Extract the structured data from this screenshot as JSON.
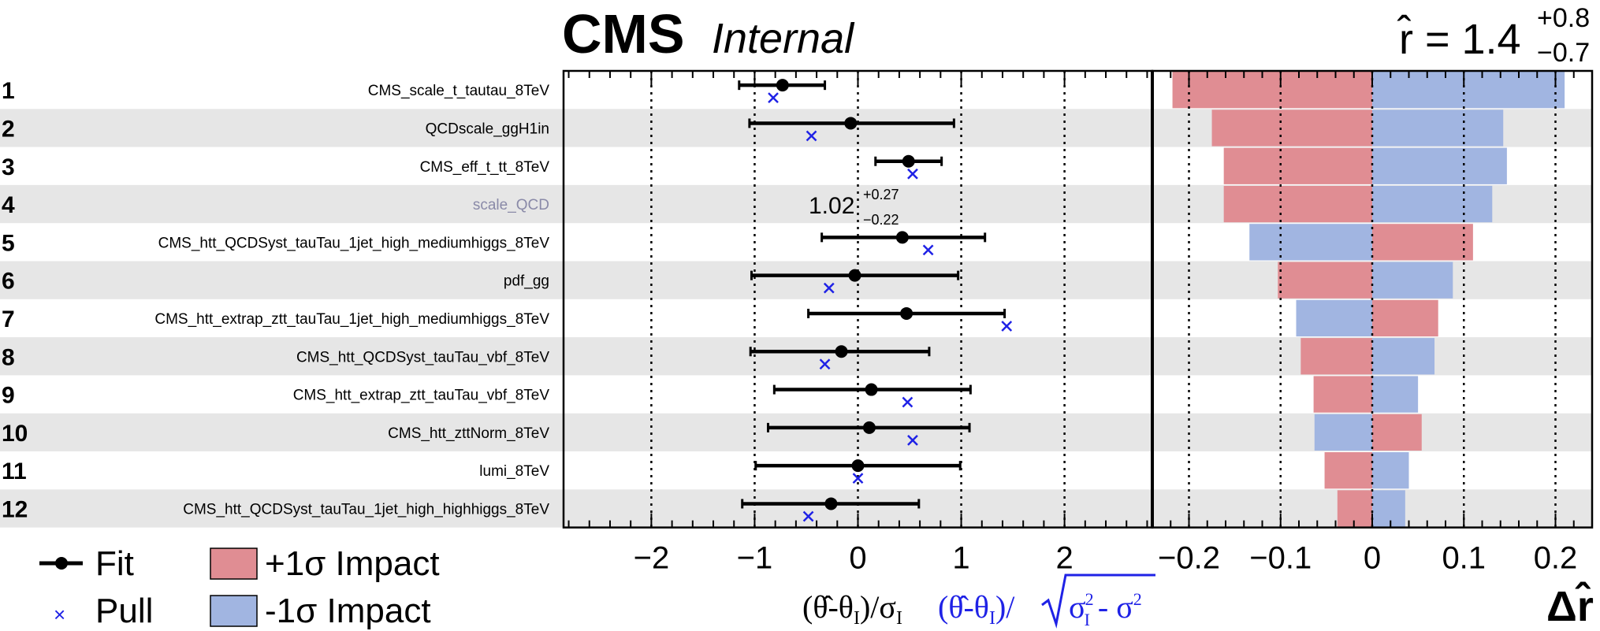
{
  "header": {
    "title": "CMS",
    "subtitle": "Internal",
    "rhat_lhs": "r̂ = 1.4",
    "rhat_up": "+0.8",
    "rhat_down": "−0.7"
  },
  "legend": {
    "fit": "Fit",
    "pull": "Pull",
    "impact_up": "+1σ Impact",
    "impact_down": "-1σ Impact"
  },
  "axes": {
    "pull_xlabel_black": "(θ̂-θ",
    "pull_xlabel_black_sub": "I",
    "pull_xlabel_black_tail": ")/σ",
    "pull_xlabel_black_tail_sub": "I",
    "pull_xlabel_blue": "(θ̂-θ",
    "pull_xlabel_blue_sub": "I",
    "pull_xlabel_blue_tail": ")/",
    "pull_xlabel_blue_sigma": "σ",
    "pull_xlabel_blue_sigma_sub": "I",
    "pull_xlabel_blue_sigma_sup": "2",
    "pull_xlabel_blue_minus": " - σ",
    "pull_xlabel_blue_minus_sup": "2",
    "impact_xlabel": "Δr̂"
  },
  "annotation": {
    "row": 4,
    "value": "1.02",
    "up": "+0.27",
    "down": "−0.22"
  },
  "colors": {
    "impact_up": "#e08d93",
    "impact_down": "#a1b5e1",
    "pull": "#1f22e6",
    "band": "#e6e6e6"
  },
  "chart_data": [
    {
      "type": "scatter",
      "name": "pulls",
      "xlim": [
        -2.85,
        2.85
      ],
      "xticks": [
        -2,
        -1,
        0,
        1,
        2
      ],
      "xtick_labels": [
        "−2",
        "−1",
        "0",
        "1",
        "2"
      ],
      "grid_lines_x": [
        -2,
        -1,
        0,
        1,
        2
      ],
      "rows": [
        {
          "rank": "1",
          "name": "CMS_scale_t_tautau_8TeV",
          "fit": -0.73,
          "lo": -1.15,
          "hi": -0.32,
          "pull": -0.82,
          "grey": false
        },
        {
          "rank": "2",
          "name": "QCDscale_ggH1in",
          "fit": -0.07,
          "lo": -1.05,
          "hi": 0.93,
          "pull": -0.45,
          "grey": false
        },
        {
          "rank": "3",
          "name": "CMS_eff_t_tt_8TeV",
          "fit": 0.49,
          "lo": 0.17,
          "hi": 0.81,
          "pull": 0.53,
          "grey": false
        },
        {
          "rank": "4",
          "name": "scale_QCD",
          "fit": null,
          "lo": null,
          "hi": null,
          "pull": null,
          "grey": true
        },
        {
          "rank": "5",
          "name": "CMS_htt_QCDSyst_tauTau_1jet_high_mediumhiggs_8TeV",
          "fit": 0.43,
          "lo": -0.35,
          "hi": 1.23,
          "pull": 0.68,
          "grey": false
        },
        {
          "rank": "6",
          "name": "pdf_gg",
          "fit": -0.03,
          "lo": -1.03,
          "hi": 0.97,
          "pull": -0.28,
          "grey": false
        },
        {
          "rank": "7",
          "name": "CMS_htt_extrap_ztt_tauTau_1jet_high_mediumhiggs_8TeV",
          "fit": 0.47,
          "lo": -0.48,
          "hi": 1.42,
          "pull": 1.44,
          "grey": false
        },
        {
          "rank": "8",
          "name": "CMS_htt_QCDSyst_tauTau_vbf_8TeV",
          "fit": -0.16,
          "lo": -1.04,
          "hi": 0.69,
          "pull": -0.32,
          "grey": false
        },
        {
          "rank": "9",
          "name": "CMS_htt_extrap_ztt_tauTau_vbf_8TeV",
          "fit": 0.13,
          "lo": -0.81,
          "hi": 1.09,
          "pull": 0.48,
          "grey": false
        },
        {
          "rank": "10",
          "name": "CMS_htt_zttNorm_8TeV",
          "fit": 0.11,
          "lo": -0.87,
          "hi": 1.08,
          "pull": 0.53,
          "grey": false
        },
        {
          "rank": "11",
          "name": "lumi_8TeV",
          "fit": 0.0,
          "lo": -0.99,
          "hi": 0.99,
          "pull": 0.0,
          "grey": false
        },
        {
          "rank": "12",
          "name": "CMS_htt_QCDSyst_tauTau_1jet_high_highhiggs_8TeV",
          "fit": -0.26,
          "lo": -1.12,
          "hi": 0.59,
          "pull": -0.48,
          "grey": false
        }
      ]
    },
    {
      "type": "bar",
      "name": "impacts",
      "orientation": "horizontal",
      "xlim": [
        -0.24,
        0.24
      ],
      "xticks": [
        -0.2,
        -0.1,
        0,
        0.1,
        0.2
      ],
      "xtick_labels": [
        "−0.2",
        "−0.1",
        "0",
        "0.1",
        "0.2"
      ],
      "grid_lines_x": [
        -0.2,
        -0.1,
        0,
        0.1,
        0.2
      ],
      "series": [
        {
          "name": "+1σ Impact",
          "values": [
            -0.218,
            -0.175,
            -0.162,
            -0.162,
            0.11,
            -0.103,
            0.072,
            -0.078,
            -0.064,
            0.054,
            -0.052,
            -0.038
          ]
        },
        {
          "name": "-1σ Impact",
          "values": [
            0.21,
            0.143,
            0.147,
            0.131,
            -0.134,
            0.088,
            -0.083,
            0.068,
            0.05,
            -0.063,
            0.04,
            0.036
          ]
        }
      ]
    }
  ]
}
